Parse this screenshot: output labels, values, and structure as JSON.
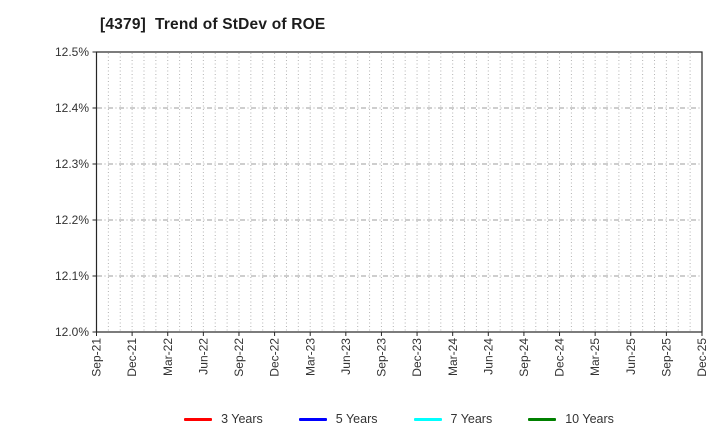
{
  "title": "[4379]  Trend of StDev of ROE",
  "chart_data": {
    "type": "line",
    "title": "[4379]  Trend of StDev of ROE",
    "categories": [
      "Sep-21",
      "Dec-21",
      "Mar-22",
      "Jun-22",
      "Sep-22",
      "Dec-22",
      "Mar-23",
      "Jun-23",
      "Sep-23",
      "Dec-23",
      "Mar-24",
      "Jun-24",
      "Sep-24",
      "Dec-24",
      "Mar-25",
      "Jun-25",
      "Sep-25",
      "Dec-25"
    ],
    "x_minor_per_interval": 3,
    "y_ticks": [
      12.0,
      12.1,
      12.2,
      12.3,
      12.4,
      12.5
    ],
    "y_tick_labels": [
      "12.0%",
      "12.1%",
      "12.2%",
      "12.3%",
      "12.4%",
      "12.5%"
    ],
    "ylim": [
      12.0,
      12.5
    ],
    "xlabel": "",
    "ylabel": "",
    "grid": true,
    "legend_position": "bottom",
    "series": [
      {
        "name": "3 Years",
        "color": "#ff0000",
        "values": []
      },
      {
        "name": "5 Years",
        "color": "#0000ff",
        "values": []
      },
      {
        "name": "7 Years",
        "color": "#00ffff",
        "values": []
      },
      {
        "name": "10 Years",
        "color": "#008000",
        "values": []
      }
    ],
    "colors": {
      "frame": "#262626",
      "minor_grid": "#b3b3b3",
      "major_grid": "#9e9e9e",
      "tick_text": "#333333"
    }
  }
}
